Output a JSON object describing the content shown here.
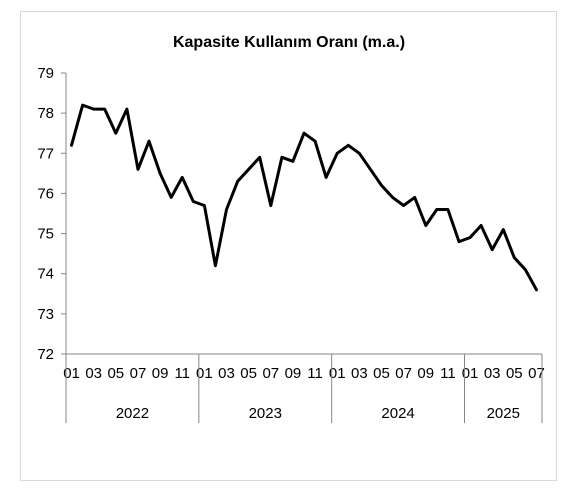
{
  "chart_data": {
    "type": "line",
    "title": "Kapasite Kullanım Oranı (m.a.)",
    "xlabel": "",
    "ylabel": "",
    "ylim": [
      72,
      79
    ],
    "yticks": [
      "72",
      "73",
      "74",
      "75",
      "76",
      "77",
      "78",
      "79"
    ],
    "x_tick_labels": [
      "01",
      "03",
      "05",
      "07",
      "09",
      "11",
      "01",
      "03",
      "05",
      "07",
      "09",
      "11",
      "01",
      "03",
      "05",
      "07",
      "09",
      "11",
      "01",
      "03",
      "05",
      "07"
    ],
    "years": [
      {
        "label": "2022",
        "months": 12
      },
      {
        "label": "2023",
        "months": 12
      },
      {
        "label": "2024",
        "months": 12
      },
      {
        "label": "2025",
        "months": 7
      }
    ],
    "grid": false,
    "legend": "none",
    "line_color": "#000000",
    "series": [
      {
        "values": [
          77.2,
          78.2,
          78.1,
          78.1,
          77.5,
          78.1,
          76.6,
          77.3,
          76.5,
          75.9,
          76.4,
          75.8,
          75.7,
          74.2,
          75.6,
          76.3,
          76.6,
          76.9,
          75.7,
          76.9,
          76.8,
          77.5,
          77.3,
          76.4,
          77.0,
          77.2,
          77.0,
          76.6,
          76.2,
          75.9,
          75.7,
          75.9,
          75.2,
          75.6,
          75.6,
          74.8,
          74.9,
          75.2,
          74.6,
          75.1,
          74.4,
          74.1,
          73.6
        ]
      }
    ]
  }
}
